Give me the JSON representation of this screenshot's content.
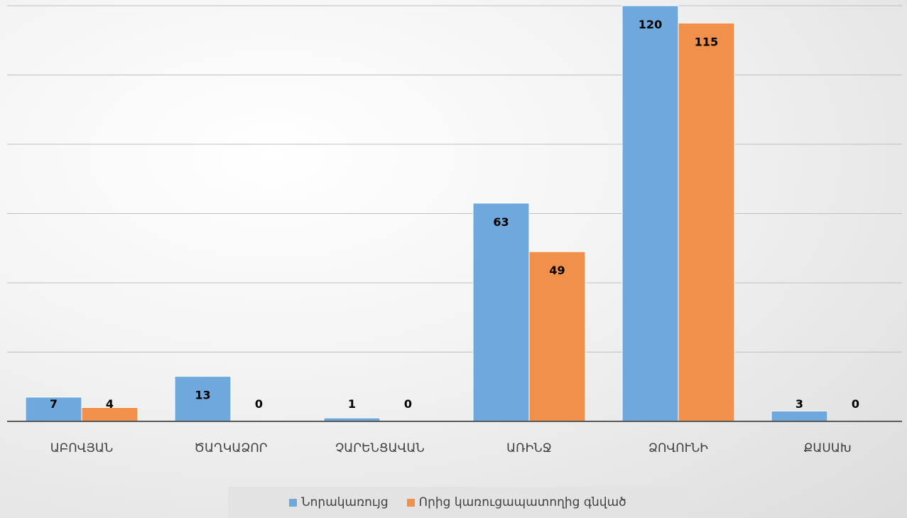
{
  "chart_data": {
    "type": "bar",
    "categories": [
      "ԱԲՈՎՅԱՆ",
      "ԾԱՂԿԱՁՈՐ",
      "ՉԱՐԵՆՑԱՎԱՆ",
      "ԱՌԻՆՋ",
      "ՁՈՎՈՒՆԻ",
      "ՔԱՍԱԽ"
    ],
    "series": [
      {
        "name": "Նորակառույց",
        "values": [
          7,
          13,
          1,
          63,
          120,
          3
        ],
        "color": "#6fa8dc"
      },
      {
        "name": "Որից  կառուցապատողից գնված",
        "values": [
          4,
          0,
          0,
          49,
          115,
          0
        ],
        "color": "#f0904a"
      }
    ],
    "ylim": [
      0,
      120
    ],
    "grid": true,
    "legend_position": "bottom",
    "xlabel": "",
    "ylabel": ""
  }
}
